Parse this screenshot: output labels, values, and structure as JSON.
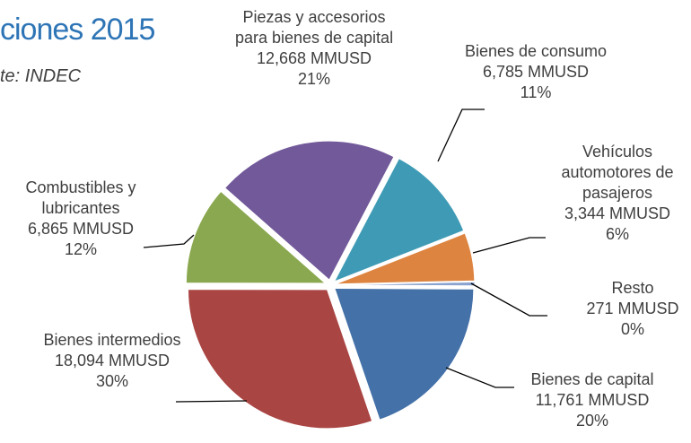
{
  "chart_data": {
    "type": "pie",
    "title": "ciones 2015",
    "subtitle": "te: INDEC",
    "categories": [
      "Piezas y accesorios para bienes de capital",
      "Bienes de consumo",
      "Vehículos automotores de pasajeros",
      "Resto",
      "Bienes de capital",
      "Bienes intermedios",
      "Combustibles y lubricantes"
    ],
    "values": [
      12668,
      6785,
      3344,
      271,
      11761,
      18094,
      6865
    ],
    "value_labels": [
      "12,668 MMUSD",
      "6,785 MMUSD",
      "3,344 MMUSD",
      "271 MMUSD",
      "11,761 MMUSD",
      "18,094 MMUSD",
      "6,865 MMUSD"
    ],
    "percent_labels": [
      "21%",
      "11%",
      "6%",
      "0%",
      "20%",
      "30%",
      "12%"
    ],
    "colors": [
      "#72599a",
      "#3f9bb5",
      "#dd8440",
      "#8aa2cf",
      "#4471a8",
      "#a94543",
      "#8aa84f"
    ]
  }
}
